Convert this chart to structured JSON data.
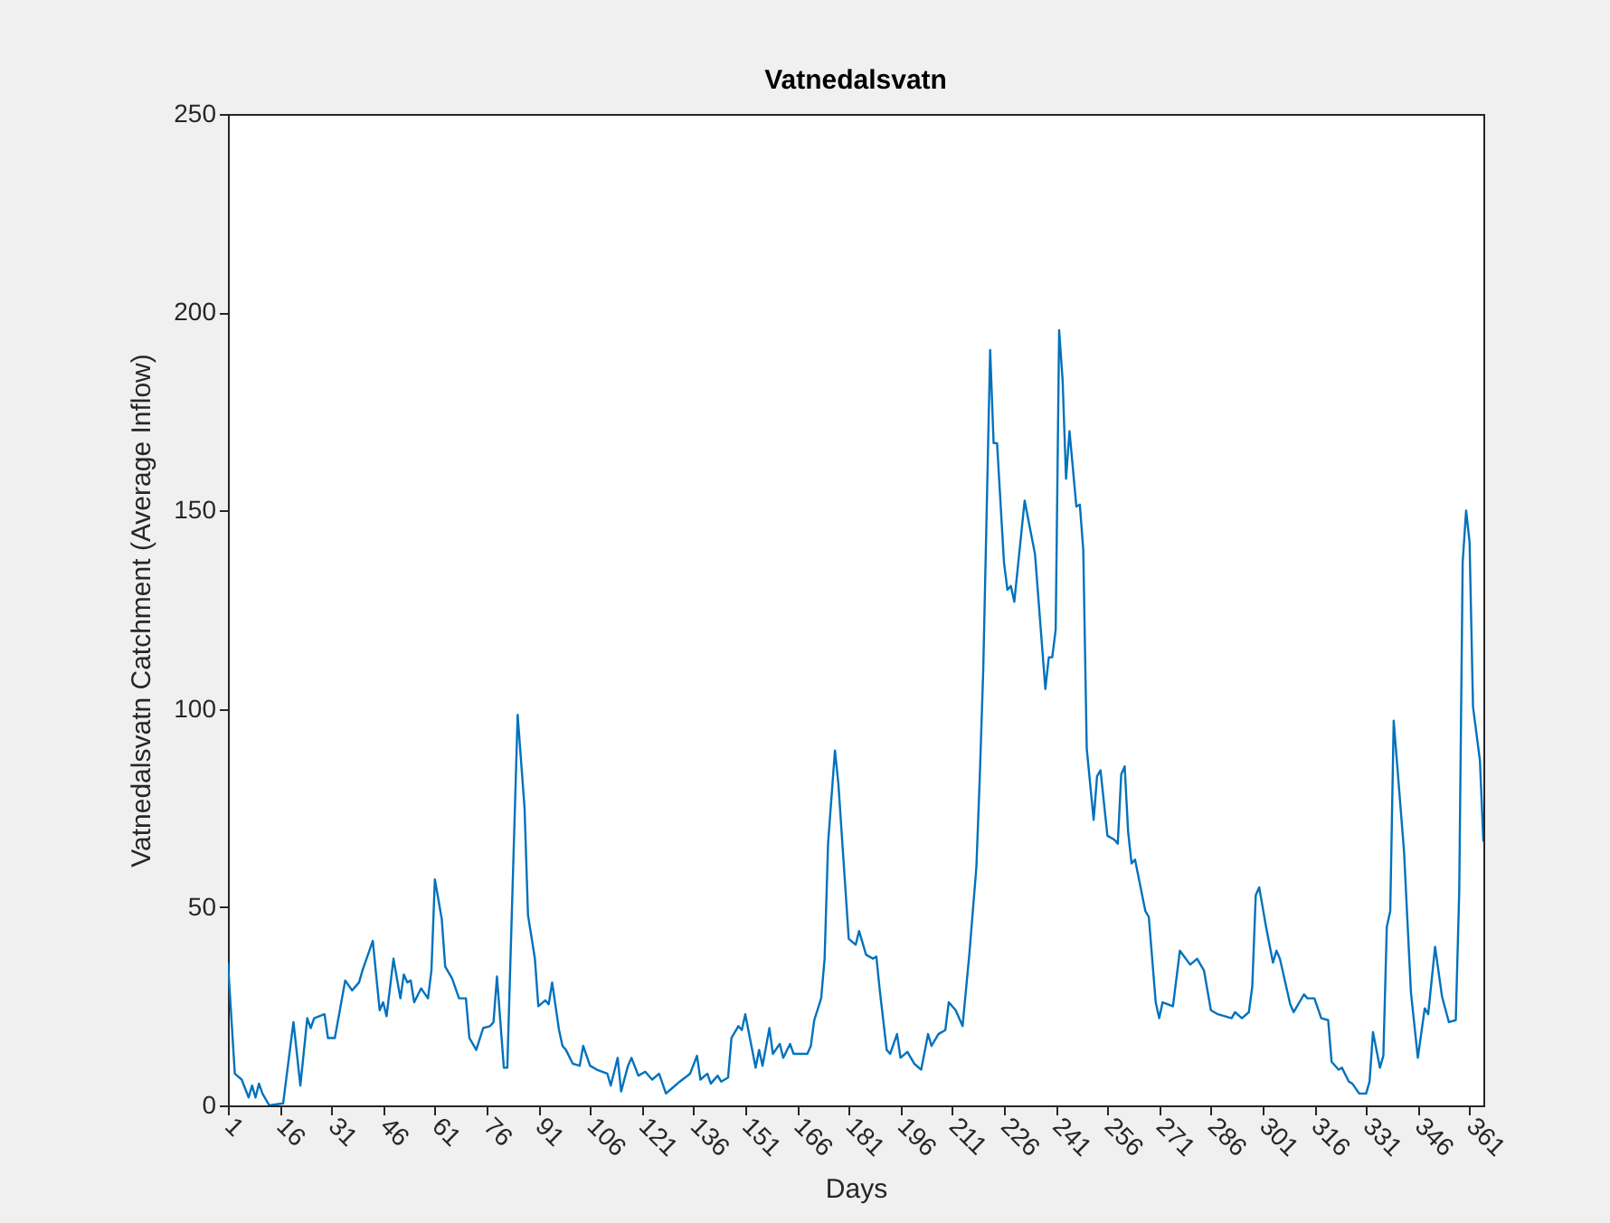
{
  "chart_data": {
    "type": "line",
    "title": "Vatnedalsvatn",
    "xlabel": "Days",
    "ylabel": "Vatnedalsvatn Catchment (Average Inflow)",
    "xlim": [
      1,
      365
    ],
    "xticks": [
      1,
      16,
      31,
      46,
      61,
      76,
      91,
      106,
      121,
      136,
      151,
      166,
      181,
      196,
      211,
      226,
      241,
      256,
      271,
      286,
      301,
      316,
      331,
      346,
      361
    ],
    "ylim": [
      0,
      250
    ],
    "yticks": [
      0,
      50,
      100,
      150,
      200,
      250
    ],
    "grid": false,
    "marker": "none",
    "line_style": "solid",
    "x": [
      1,
      3,
      5,
      7,
      8,
      9,
      10,
      11,
      13,
      17,
      20,
      22,
      24,
      25,
      26,
      29,
      30,
      32,
      35,
      37,
      39,
      40,
      43,
      45,
      46,
      47,
      49,
      51,
      52,
      53,
      54,
      55,
      57,
      59,
      60,
      61,
      63,
      64,
      66,
      68,
      70,
      71,
      73,
      75,
      77,
      78,
      79,
      81,
      82,
      85,
      87,
      88,
      90,
      91,
      93,
      94,
      95,
      97,
      98,
      99,
      101,
      103,
      104,
      106,
      108,
      111,
      112,
      114,
      115,
      117,
      118,
      120,
      122,
      124,
      126,
      128,
      130,
      132,
      135,
      137,
      138,
      140,
      141,
      143,
      144,
      146,
      147,
      149,
      150,
      151,
      154,
      155,
      156,
      158,
      159,
      161,
      162,
      164,
      165,
      169,
      170,
      171,
      173,
      174,
      175,
      177,
      178,
      181,
      183,
      184,
      186,
      188,
      189,
      190,
      192,
      193,
      195,
      196,
      198,
      200,
      202,
      204,
      205,
      207,
      209,
      210,
      212,
      214,
      216,
      218,
      219,
      220,
      222,
      223,
      224,
      226,
      227,
      228,
      229,
      232,
      235,
      238,
      239,
      240,
      241,
      242,
      243,
      244,
      245,
      247,
      248,
      249,
      250,
      252,
      253,
      254,
      256,
      258,
      259,
      260,
      261,
      262,
      263,
      264,
      267,
      268,
      270,
      271,
      272,
      275,
      277,
      280,
      282,
      284,
      286,
      288,
      292,
      293,
      295,
      297,
      298,
      299,
      300,
      302,
      304,
      305,
      306,
      309,
      310,
      313,
      314,
      316,
      318,
      320,
      321,
      323,
      324,
      326,
      327,
      329,
      331,
      332,
      333,
      335,
      336,
      337,
      338,
      339,
      342,
      344,
      346,
      348,
      349,
      351,
      353,
      355,
      357,
      358,
      359,
      360,
      361,
      362,
      364,
      365
    ],
    "series": [
      {
        "color": "#0072bd",
        "values": [
          36,
          8,
          6.5,
          2,
          5,
          2,
          5.5,
          3,
          0,
          0.5,
          21,
          5,
          22,
          19.5,
          22,
          23,
          17,
          17,
          31.5,
          29,
          31,
          34,
          41.5,
          24,
          26,
          22.5,
          37,
          27,
          33,
          31,
          31.5,
          26,
          29.5,
          27,
          34,
          57,
          47,
          35,
          32,
          27,
          27,
          17,
          14,
          19.5,
          20,
          21,
          32.5,
          9.5,
          9.5,
          98.5,
          75,
          48,
          37,
          25,
          26.5,
          25.5,
          31,
          19,
          15,
          14,
          10.5,
          10,
          15,
          10,
          9,
          8,
          5,
          12,
          3.5,
          10,
          12,
          7.5,
          8.5,
          6.5,
          8,
          3,
          4.5,
          6,
          8,
          12.5,
          6.5,
          8,
          5.5,
          7.5,
          6,
          7,
          17,
          20,
          19,
          23,
          9.5,
          14,
          10,
          19.5,
          13,
          15.5,
          12,
          15.5,
          13,
          13,
          15,
          21.5,
          27,
          37,
          66,
          89.5,
          81,
          42,
          40.5,
          44,
          38,
          37,
          37.5,
          29,
          14,
          13,
          18,
          12,
          13.5,
          10.5,
          9,
          18,
          15,
          18,
          19,
          26,
          24,
          20,
          38.5,
          60,
          83,
          110,
          190.5,
          167,
          167,
          137,
          130,
          131,
          127,
          152.5,
          139,
          105,
          113,
          113,
          120,
          195.5,
          183,
          158,
          170,
          151,
          151.5,
          140,
          90,
          72,
          83,
          84.5,
          68,
          67,
          66,
          83.5,
          85.5,
          69,
          61,
          62,
          49,
          47.5,
          26,
          22,
          26,
          25,
          39,
          35.5,
          37,
          34,
          24,
          23,
          22,
          23.5,
          22,
          23.5,
          30,
          53,
          55,
          45,
          36,
          39,
          37,
          25.5,
          23.5,
          28,
          27,
          27,
          22,
          21.5,
          11,
          9,
          9.5,
          6,
          5.5,
          3,
          3,
          6,
          18.5,
          9.5,
          12.5,
          45,
          49,
          97,
          64,
          28.5,
          12,
          24.5,
          23,
          40,
          27.5,
          21,
          21.5,
          54,
          137,
          150,
          142,
          100.5,
          87,
          66.5
        ]
      }
    ]
  }
}
